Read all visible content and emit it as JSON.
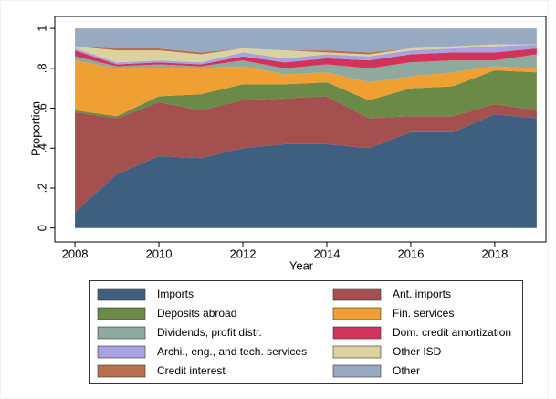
{
  "chart_data": {
    "type": "stacked_area",
    "x_label": "Year",
    "y_label": "Proportion",
    "x": [
      2008,
      2009,
      2010,
      2011,
      2012,
      2013,
      2014,
      2015,
      2016,
      2017,
      2018,
      2019
    ],
    "xlim": [
      2007.52,
      2019.22
    ],
    "xticks": [
      2008,
      2010,
      2012,
      2014,
      2016,
      2018
    ],
    "ylim": [
      -0.07,
      1.06
    ],
    "yticks": [
      0,
      {
        "value": 0.2,
        "label": ".2"
      },
      {
        "value": 0.4,
        "label": ".4"
      },
      {
        "value": 0.6,
        "label": ".6"
      },
      {
        "value": 0.8,
        "label": ".8"
      },
      1
    ],
    "grid": false,
    "series": [
      {
        "name": "Imports",
        "color": "#3f5f80",
        "values": [
          0.08,
          0.27,
          0.36,
          0.35,
          0.4,
          0.42,
          0.42,
          0.4,
          0.48,
          0.48,
          0.57,
          0.55
        ]
      },
      {
        "name": "Ant. imports",
        "color": "#a3504f",
        "values": [
          0.5,
          0.28,
          0.27,
          0.24,
          0.24,
          0.23,
          0.24,
          0.15,
          0.08,
          0.08,
          0.05,
          0.04
        ]
      },
      {
        "name": "Deposits abroad",
        "color": "#6b8a47",
        "values": [
          0.01,
          0.01,
          0.03,
          0.08,
          0.08,
          0.07,
          0.07,
          0.09,
          0.14,
          0.15,
          0.17,
          0.19
        ]
      },
      {
        "name": "Fin. services",
        "color": "#f0a033",
        "values": [
          0.25,
          0.24,
          0.14,
          0.13,
          0.09,
          0.05,
          0.05,
          0.09,
          0.06,
          0.07,
          0.02,
          0.02
        ]
      },
      {
        "name": "Dividends, profit distr.",
        "color": "#8eaa9e",
        "values": [
          0.02,
          0.01,
          0.02,
          0.01,
          0.03,
          0.03,
          0.04,
          0.07,
          0.07,
          0.06,
          0.03,
          0.07
        ]
      },
      {
        "name": "Dom. credit amortization",
        "color": "#d3325a",
        "values": [
          0.03,
          0.01,
          0.01,
          0.01,
          0.02,
          0.03,
          0.03,
          0.04,
          0.04,
          0.04,
          0.04,
          0.03
        ]
      },
      {
        "name": "Archi., eng., and tech. services",
        "color": "#a9a2e0",
        "values": [
          0.01,
          0.01,
          0.01,
          0.01,
          0.02,
          0.02,
          0.02,
          0.02,
          0.02,
          0.02,
          0.03,
          0.02
        ]
      },
      {
        "name": "Other ISD",
        "color": "#dad3a0",
        "values": [
          0.01,
          0.06,
          0.05,
          0.04,
          0.02,
          0.04,
          0.01,
          0.01,
          0.01,
          0.01,
          0.01,
          0.0
        ]
      },
      {
        "name": "Credit interest",
        "color": "#b5704f",
        "values": [
          0.0,
          0.01,
          0.01,
          0.01,
          0.0,
          0.0,
          0.01,
          0.01,
          0.0,
          0.0,
          0.0,
          0.0
        ]
      },
      {
        "name": "Other",
        "color": "#98aac2",
        "values": [
          0.09,
          0.1,
          0.1,
          0.12,
          0.1,
          0.11,
          0.11,
          0.12,
          0.1,
          0.09,
          0.08,
          0.08
        ]
      }
    ]
  }
}
